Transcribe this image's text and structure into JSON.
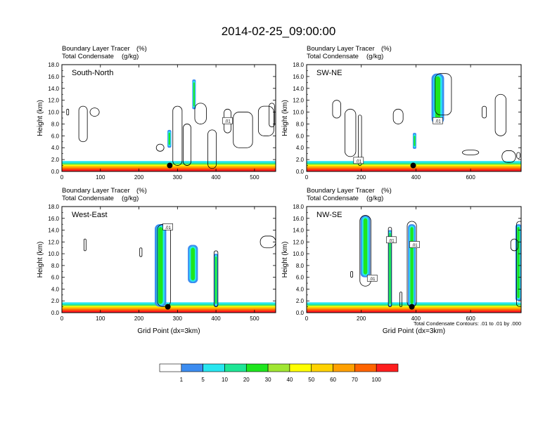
{
  "chart_data": {
    "type": "heatmap",
    "title": "2014-02-25_09:00:00",
    "colorbar": {
      "labels": [
        "1",
        "5",
        "10",
        "20",
        "30",
        "40",
        "50",
        "60",
        "70",
        "100"
      ],
      "colors": [
        "#ffffff",
        "#3c8cf0",
        "#28e6f0",
        "#1ee696",
        "#1ee61e",
        "#a0e632",
        "#ffff00",
        "#ffd200",
        "#ffa000",
        "#ff6400",
        "#ff1e1e"
      ]
    },
    "contour_note": "Total Condensate Contours: .01 to .01 by .000",
    "contour_label": ".01",
    "panels": [
      {
        "id": "south-north",
        "label": "South-North",
        "subtitle_left_1": "Boundary Layer Tracer",
        "subtitle_unit_1": "(%)",
        "subtitle_left_2": "Total Condensate",
        "subtitle_unit_2": "(g/kg)",
        "ylabel": "Height (km)",
        "xlabel": "",
        "xlim": [
          0,
          555
        ],
        "ylim": [
          0,
          18
        ],
        "xticks": [
          "0",
          "100",
          "200",
          "300",
          "400",
          "500"
        ],
        "xtick_values": [
          0,
          100,
          200,
          300,
          400,
          500
        ],
        "yticks": [
          "0.0",
          "2.0",
          "4.0",
          "6.0",
          "8.0",
          "10.0",
          "12.0",
          "14.0",
          "16.0",
          "18.0"
        ],
        "marker_x": 280,
        "clouds": [
          {
            "x": 343,
            "y": [
              10.5,
              15.5
            ],
            "w": 8
          },
          {
            "x": 279,
            "y": [
              4.0,
              7.0
            ],
            "w": 10
          }
        ],
        "contours": [
          {
            "x": 15,
            "y": [
              9.5,
              10.5
            ],
            "w": 2
          },
          {
            "x": 55,
            "y": [
              5.0,
              11.0
            ],
            "w": 22
          },
          {
            "x": 85,
            "y": [
              9.3,
              10.7
            ],
            "w": 24
          },
          {
            "x": 255,
            "y": [
              3.4,
              4.6
            ],
            "w": 20
          },
          {
            "x": 300,
            "y": [
              1.0,
              11.0
            ],
            "w": 24
          },
          {
            "x": 325,
            "y": [
              1.0,
              8.0
            ],
            "w": 20
          },
          {
            "x": 360,
            "y": [
              8.0,
              11.5
            ],
            "w": 30
          },
          {
            "x": 390,
            "y": [
              0.5,
              7.0
            ],
            "w": 22
          },
          {
            "x": 430,
            "y": [
              6.5,
              10.5
            ],
            "w": 18
          },
          {
            "x": 470,
            "y": [
              4.0,
              10.0
            ],
            "w": 50
          },
          {
            "x": 530,
            "y": [
              6.0,
              11.0
            ],
            "w": 40
          },
          {
            "x": 545,
            "y": [
              7.5,
              11.5
            ],
            "w": 14
          }
        ],
        "contour_labels": [
          {
            "x": 430,
            "y": 8.5
          }
        ]
      },
      {
        "id": "sw-ne",
        "label": "SW-NE",
        "subtitle_left_1": "Boundary Layer Tracer",
        "subtitle_unit_1": "(%)",
        "subtitle_left_2": "Total Condensate",
        "subtitle_unit_2": "(g/kg)",
        "ylabel": "Height (km)",
        "xlabel": "",
        "xlim": [
          0,
          785
        ],
        "ylim": [
          0,
          18
        ],
        "xticks": [
          "0",
          "200",
          "400",
          "600"
        ],
        "xtick_values": [
          0,
          200,
          400,
          600
        ],
        "yticks": [
          "0.0",
          "2.0",
          "4.0",
          "6.0",
          "8.0",
          "10.0",
          "12.0",
          "14.0",
          "16.0",
          "18.0"
        ],
        "marker_x": 390,
        "clouds": [
          {
            "x": 480,
            "y": [
              8.0,
              16.5
            ],
            "w": 46
          },
          {
            "x": 395,
            "y": [
              3.8,
              6.5
            ],
            "w": 10
          }
        ],
        "contours": [
          {
            "x": 110,
            "y": [
              9.0,
              12.0
            ],
            "w": 30
          },
          {
            "x": 160,
            "y": [
              2.5,
              10.5
            ],
            "w": 40
          },
          {
            "x": 195,
            "y": [
              1.0,
              9.5
            ],
            "w": 12
          },
          {
            "x": 335,
            "y": [
              8.0,
              10.5
            ],
            "w": 36
          },
          {
            "x": 500,
            "y": [
              9.5,
              16.5
            ],
            "w": 60
          },
          {
            "x": 600,
            "y": [
              2.8,
              3.6
            ],
            "w": 60
          },
          {
            "x": 650,
            "y": [
              9.0,
              11.0
            ],
            "w": 16
          },
          {
            "x": 710,
            "y": [
              6.0,
              13.0
            ],
            "w": 40
          },
          {
            "x": 740,
            "y": [
              1.5,
              3.5
            ],
            "w": 50
          },
          {
            "x": 775,
            "y": [
              2.2,
              3.2
            ],
            "w": 12
          }
        ],
        "contour_labels": [
          {
            "x": 190,
            "y": 1.8
          },
          {
            "x": 480,
            "y": 8.5
          }
        ]
      },
      {
        "id": "west-east",
        "label": "West-East",
        "subtitle_left_1": "Boundary Layer Tracer",
        "subtitle_unit_1": "(%)",
        "subtitle_left_2": "Total Condensate",
        "subtitle_unit_2": "(g/kg)",
        "ylabel": "Height (km)",
        "xlabel": "Grid Point (dx=3km)",
        "xlim": [
          0,
          555
        ],
        "ylim": [
          0,
          18
        ],
        "xticks": [
          "0",
          "100",
          "200",
          "300",
          "400",
          "500"
        ],
        "xtick_values": [
          0,
          100,
          200,
          300,
          400,
          500
        ],
        "yticks": [
          "0.0",
          "2.0",
          "4.0",
          "6.0",
          "8.0",
          "10.0",
          "12.0",
          "14.0",
          "16.0",
          "18.0"
        ],
        "marker_x": 275,
        "clouds": [
          {
            "x": 256,
            "y": [
              1.0,
              15.0
            ],
            "w": 30
          },
          {
            "x": 340,
            "y": [
              5.0,
              11.5
            ],
            "w": 26
          },
          {
            "x": 400,
            "y": [
              1.0,
              10.0
            ],
            "w": 10
          }
        ],
        "contours": [
          {
            "x": 60,
            "y": [
              10.5,
              12.5
            ],
            "w": 4
          },
          {
            "x": 205,
            "y": [
              9.5,
              11.0
            ],
            "w": 6
          },
          {
            "x": 265,
            "y": [
              1.0,
              15.0
            ],
            "w": 34
          },
          {
            "x": 400,
            "y": [
              1.0,
              10.5
            ],
            "w": 10
          },
          {
            "x": 535,
            "y": [
              11.0,
              13.0
            ],
            "w": 40
          }
        ],
        "contour_labels": [
          {
            "x": 275,
            "y": 14.5
          }
        ]
      },
      {
        "id": "nw-se",
        "label": "NW-SE",
        "subtitle_left_1": "Boundary Layer Tracer",
        "subtitle_unit_1": "(%)",
        "subtitle_left_2": "Total Condensate",
        "subtitle_unit_2": "(g/kg)",
        "ylabel": "Height (km)",
        "xlabel": "Grid Point (dx=3km)",
        "xlim": [
          0,
          785
        ],
        "ylim": [
          0,
          18
        ],
        "xticks": [
          "0",
          "200",
          "400",
          "600"
        ],
        "xtick_values": [
          0,
          200,
          400,
          600
        ],
        "yticks": [
          "0.0",
          "2.0",
          "4.0",
          "6.0",
          "8.0",
          "10.0",
          "12.0",
          "14.0",
          "16.0",
          "18.0"
        ],
        "marker_x": 385,
        "clouds": [
          {
            "x": 215,
            "y": [
              6.0,
              16.5
            ],
            "w": 36
          },
          {
            "x": 305,
            "y": [
              1.0,
              14.0
            ],
            "w": 10
          },
          {
            "x": 385,
            "y": [
              1.0,
              15.0
            ],
            "w": 28
          },
          {
            "x": 775,
            "y": [
              2.0,
              15.0
            ],
            "w": 22
          }
        ],
        "contours": [
          {
            "x": 165,
            "y": [
              6.0,
              7.0
            ],
            "w": 6
          },
          {
            "x": 215,
            "y": [
              4.5,
              16.5
            ],
            "w": 40
          },
          {
            "x": 305,
            "y": [
              1.0,
              14.5
            ],
            "w": 12
          },
          {
            "x": 345,
            "y": [
              1.0,
              3.5
            ],
            "w": 6
          },
          {
            "x": 385,
            "y": [
              1.0,
              15.5
            ],
            "w": 34
          },
          {
            "x": 780,
            "y": [
              1.0,
              15.5
            ],
            "w": 24
          },
          {
            "x": 760,
            "y": [
              10.5,
              12.5
            ],
            "w": 26
          }
        ],
        "contour_labels": [
          {
            "x": 240,
            "y": 5.8
          },
          {
            "x": 310,
            "y": 12.3
          },
          {
            "x": 395,
            "y": 11.5
          }
        ]
      }
    ]
  }
}
